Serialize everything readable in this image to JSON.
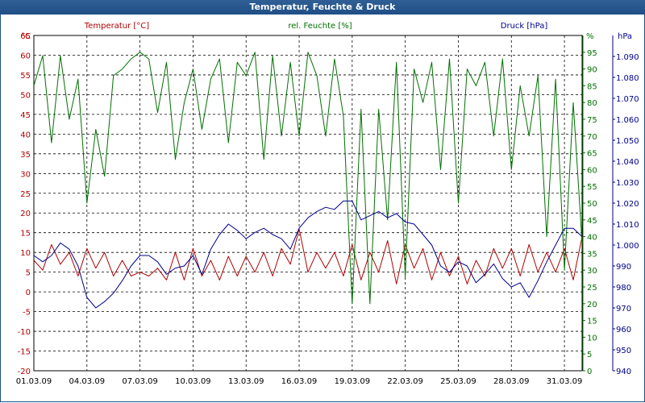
{
  "window_title": "Temperatur, Feuchte & Druck",
  "chart_data": {
    "type": "line",
    "x_tick_labels": [
      "01.03.09",
      "04.03.09",
      "07.03.09",
      "10.03.09",
      "13.03.09",
      "16.03.09",
      "19.03.09",
      "22.03.09",
      "25.03.09",
      "28.03.09",
      "31.03.09"
    ],
    "xlim": [
      "01.03.09",
      "01.04.09"
    ],
    "grid": true,
    "axes": [
      {
        "id": "temp",
        "name": "Temperatur [°C]",
        "unit": "°C",
        "side": "left",
        "ylim": [
          -20,
          65
        ],
        "ticks": [
          -20,
          -15,
          -10,
          -5,
          0,
          5,
          10,
          15,
          20,
          25,
          30,
          35,
          40,
          45,
          50,
          55,
          60,
          65
        ],
        "color": "#b00000"
      },
      {
        "id": "hum",
        "name": "rel. Feuchte [%]",
        "unit": "%",
        "side": "right",
        "ylim": [
          0,
          100
        ],
        "ticks": [
          0,
          5,
          10,
          15,
          20,
          25,
          30,
          35,
          40,
          45,
          50,
          55,
          60,
          65,
          70,
          75,
          80,
          85,
          90,
          95
        ],
        "color": "#007000"
      },
      {
        "id": "press",
        "name": "Druck [hPa]",
        "unit": "hPa",
        "side": "right",
        "ylim": [
          940,
          1100
        ],
        "ticks": [
          940,
          950,
          960,
          970,
          980,
          990,
          1000,
          1010,
          1020,
          1030,
          1040,
          1050,
          1060,
          1070,
          1080,
          1090
        ],
        "tick_labels": [
          "940",
          "950",
          "960",
          "970",
          "980",
          "990",
          "1.000",
          "1.010",
          "1.020",
          "1.030",
          "1.040",
          "1.050",
          "1.060",
          "1.070",
          "1.080",
          "1.090"
        ],
        "color": "#00008b"
      }
    ],
    "series": [
      {
        "name": "Temperatur [°C]",
        "axis": "temp",
        "color": "#b00000",
        "x": [
          "01.03.09",
          "01.03.09 12:00",
          "02.03.09",
          "02.03.09 12:00",
          "03.03.09",
          "03.03.09 12:00",
          "04.03.09",
          "04.03.09 12:00",
          "05.03.09",
          "05.03.09 12:00",
          "06.03.09",
          "06.03.09 12:00",
          "07.03.09",
          "07.03.09 12:00",
          "08.03.09",
          "08.03.09 12:00",
          "09.03.09",
          "09.03.09 12:00",
          "10.03.09",
          "10.03.09 12:00",
          "11.03.09",
          "11.03.09 12:00",
          "12.03.09",
          "12.03.09 12:00",
          "13.03.09",
          "13.03.09 12:00",
          "14.03.09",
          "14.03.09 12:00",
          "15.03.09",
          "15.03.09 12:00",
          "16.03.09",
          "16.03.09 12:00",
          "17.03.09",
          "17.03.09 12:00",
          "18.03.09",
          "18.03.09 12:00",
          "19.03.09",
          "19.03.09 12:00",
          "20.03.09",
          "20.03.09 12:00",
          "21.03.09",
          "21.03.09 12:00",
          "22.03.09",
          "22.03.09 12:00",
          "23.03.09",
          "23.03.09 12:00",
          "24.03.09",
          "24.03.09 12:00",
          "25.03.09",
          "25.03.09 12:00",
          "26.03.09",
          "26.03.09 12:00",
          "27.03.09",
          "27.03.09 12:00",
          "28.03.09",
          "28.03.09 12:00",
          "29.03.09",
          "29.03.09 12:00",
          "30.03.09",
          "30.03.09 12:00",
          "31.03.09",
          "31.03.09 12:00",
          "01.04.09"
        ],
        "values": [
          8,
          5.5,
          12,
          7,
          10,
          4,
          11,
          6,
          10,
          4,
          8,
          4,
          5,
          4,
          6,
          3,
          10,
          3,
          11,
          4,
          8,
          3,
          9,
          4,
          9,
          5,
          10,
          4,
          11,
          7,
          16,
          5,
          10,
          6,
          10,
          4,
          12,
          3,
          10,
          5,
          13,
          2,
          12,
          6,
          11,
          3,
          10,
          4,
          9,
          2,
          8,
          4,
          11,
          6,
          11,
          4,
          12,
          5,
          10,
          5,
          11,
          3,
          14
        ]
      },
      {
        "name": "rel. Feuchte [%]",
        "axis": "hum",
        "color": "#007000",
        "x": [
          "01.03.09",
          "01.03.09 12:00",
          "02.03.09",
          "02.03.09 12:00",
          "03.03.09",
          "03.03.09 12:00",
          "04.03.09",
          "04.03.09 12:00",
          "05.03.09",
          "05.03.09 12:00",
          "06.03.09",
          "06.03.09 12:00",
          "07.03.09",
          "07.03.09 12:00",
          "08.03.09",
          "08.03.09 12:00",
          "09.03.09",
          "09.03.09 12:00",
          "10.03.09",
          "10.03.09 12:00",
          "11.03.09",
          "11.03.09 12:00",
          "12.03.09",
          "12.03.09 12:00",
          "13.03.09",
          "13.03.09 12:00",
          "14.03.09",
          "14.03.09 12:00",
          "15.03.09",
          "15.03.09 12:00",
          "16.03.09",
          "16.03.09 12:00",
          "17.03.09",
          "17.03.09 12:00",
          "18.03.09",
          "18.03.09 12:00",
          "19.03.09",
          "19.03.09 12:00",
          "20.03.09",
          "20.03.09 12:00",
          "21.03.09",
          "21.03.09 12:00",
          "22.03.09",
          "22.03.09 12:00",
          "23.03.09",
          "23.03.09 12:00",
          "24.03.09",
          "24.03.09 12:00",
          "25.03.09",
          "25.03.09 12:00",
          "26.03.09",
          "26.03.09 12:00",
          "27.03.09",
          "27.03.09 12:00",
          "28.03.09",
          "28.03.09 12:00",
          "29.03.09",
          "29.03.09 12:00",
          "30.03.09",
          "30.03.09 12:00",
          "31.03.09",
          "31.03.09 12:00",
          "01.04.09"
        ],
        "values": [
          85,
          94,
          68,
          94,
          75,
          87,
          50,
          72,
          58,
          88,
          90,
          93,
          95,
          93,
          77,
          92,
          63,
          80,
          90,
          72,
          87,
          93,
          68,
          92,
          88,
          95,
          63,
          94,
          70,
          92,
          70,
          95,
          88,
          70,
          93,
          76,
          20,
          78,
          20,
          78,
          45,
          92,
          28,
          90,
          80,
          92,
          60,
          93,
          50,
          90,
          85,
          92,
          70,
          93,
          60,
          85,
          70,
          88,
          40,
          87,
          30,
          80,
          38
        ]
      },
      {
        "name": "Druck [hPa]",
        "axis": "press",
        "color": "#00008b",
        "x": [
          "01.03.09",
          "01.03.09 12:00",
          "02.03.09",
          "02.03.09 12:00",
          "03.03.09",
          "03.03.09 12:00",
          "04.03.09",
          "04.03.09 12:00",
          "05.03.09",
          "05.03.09 12:00",
          "06.03.09",
          "06.03.09 12:00",
          "07.03.09",
          "07.03.09 12:00",
          "08.03.09",
          "08.03.09 12:00",
          "09.03.09",
          "09.03.09 12:00",
          "10.03.09",
          "10.03.09 12:00",
          "11.03.09",
          "11.03.09 12:00",
          "12.03.09",
          "12.03.09 12:00",
          "13.03.09",
          "13.03.09 12:00",
          "14.03.09",
          "14.03.09 12:00",
          "15.03.09",
          "15.03.09 12:00",
          "16.03.09",
          "16.03.09 12:00",
          "17.03.09",
          "17.03.09 12:00",
          "18.03.09",
          "18.03.09 12:00",
          "19.03.09",
          "19.03.09 12:00",
          "20.03.09",
          "20.03.09 12:00",
          "21.03.09",
          "21.03.09 12:00",
          "22.03.09",
          "22.03.09 12:00",
          "23.03.09",
          "23.03.09 12:00",
          "24.03.09",
          "24.03.09 12:00",
          "25.03.09",
          "25.03.09 12:00",
          "26.03.09",
          "26.03.09 12:00",
          "27.03.09",
          "27.03.09 12:00",
          "28.03.09",
          "28.03.09 12:00",
          "29.03.09",
          "29.03.09 12:00",
          "30.03.09",
          "30.03.09 12:00",
          "31.03.09",
          "31.03.09 12:00",
          "01.04.09"
        ],
        "values": [
          995,
          992,
          995,
          1001,
          998,
          990,
          975,
          970,
          973,
          977,
          983,
          990,
          995,
          995,
          992,
          986,
          989,
          990,
          995,
          986,
          998,
          1005,
          1010,
          1007,
          1003,
          1006,
          1008,
          1005,
          1003,
          998,
          1008,
          1013,
          1016,
          1018,
          1017,
          1021,
          1021,
          1012,
          1014,
          1016,
          1013,
          1015,
          1011,
          1010,
          1005,
          1000,
          990,
          987,
          992,
          990,
          982,
          986,
          991,
          984,
          980,
          982,
          975,
          983,
          992,
          1000,
          1008,
          1008,
          1004
        ]
      }
    ]
  }
}
